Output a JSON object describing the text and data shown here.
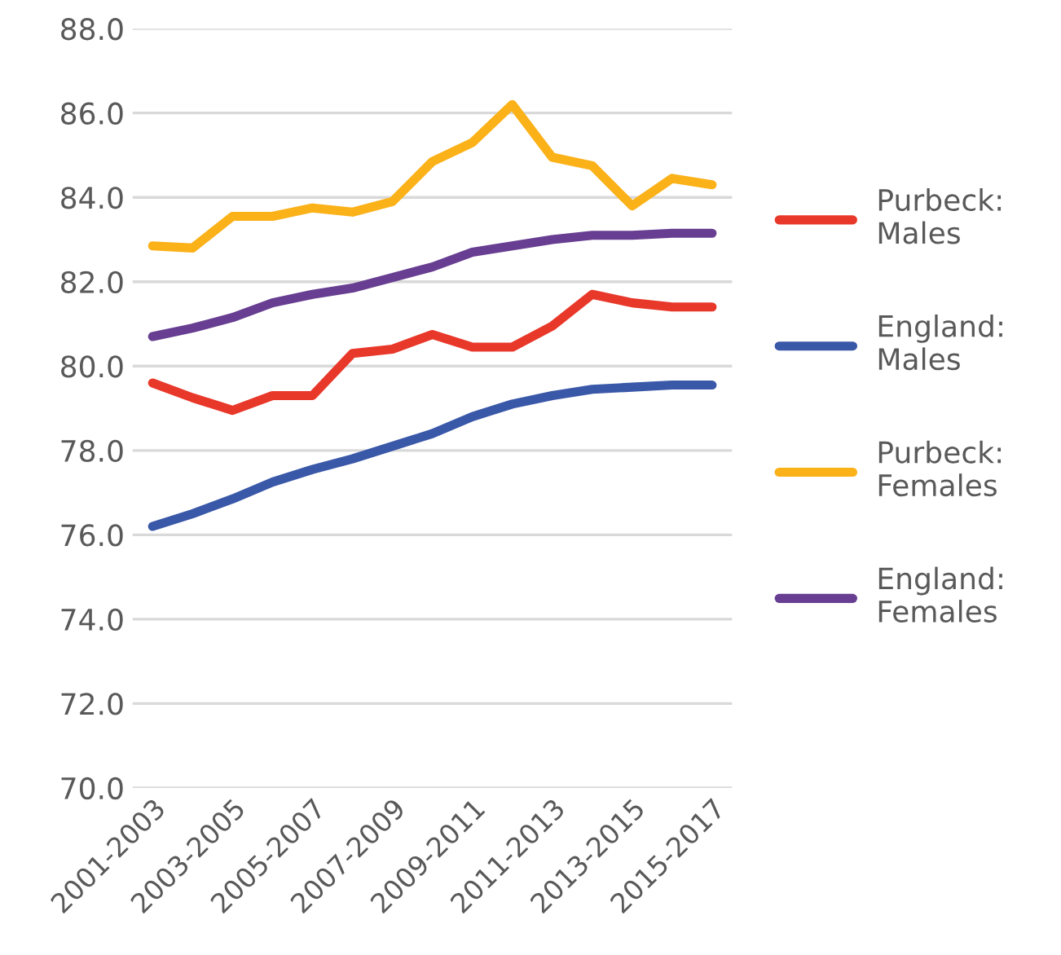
{
  "chart_data": {
    "type": "line",
    "categories": [
      "2001-2003",
      null,
      "2003-2005",
      null,
      "2005-2007",
      null,
      "2007-2009",
      null,
      "2009-2011",
      null,
      "2011-2013",
      null,
      "2013-2015",
      null,
      "2015-2017"
    ],
    "series": [
      {
        "name": "Purbeck:\nMales",
        "color": "#e8382a",
        "values": [
          79.6,
          79.25,
          78.95,
          79.3,
          79.3,
          80.3,
          80.4,
          80.75,
          80.45,
          80.45,
          80.95,
          81.7,
          81.5,
          81.4,
          81.4
        ]
      },
      {
        "name": "England:\nMales",
        "color": "#3a58a8",
        "values": [
          76.2,
          76.5,
          76.85,
          77.25,
          77.55,
          77.8,
          78.1,
          78.4,
          78.8,
          79.1,
          79.3,
          79.45,
          79.5,
          79.55,
          79.55
        ]
      },
      {
        "name": "Purbeck:\nFemales",
        "color": "#fbb118",
        "values": [
          82.85,
          82.8,
          83.55,
          83.55,
          83.75,
          83.65,
          83.9,
          84.85,
          85.3,
          86.2,
          84.95,
          84.75,
          83.8,
          84.45,
          84.3
        ]
      },
      {
        "name": "England:\nFemales",
        "color": "#673e91",
        "values": [
          80.7,
          80.9,
          81.15,
          81.5,
          81.7,
          81.85,
          82.1,
          82.35,
          82.7,
          82.85,
          83.0,
          83.1,
          83.1,
          83.15,
          83.15
        ]
      }
    ],
    "ylim": [
      70,
      88
    ],
    "yticks": [
      {
        "value": 70,
        "label": "70.0"
      },
      {
        "value": 72,
        "label": "72.0"
      },
      {
        "value": 74,
        "label": "74.0"
      },
      {
        "value": 76,
        "label": "76.0"
      },
      {
        "value": 78,
        "label": "78.0"
      },
      {
        "value": 80,
        "label": "80.0"
      },
      {
        "value": 82,
        "label": "82.0"
      },
      {
        "value": 84,
        "label": "84.0"
      },
      {
        "value": 86,
        "label": "86.0"
      },
      {
        "value": 88,
        "label": "88.0"
      }
    ],
    "grid": "y",
    "legend": "right",
    "marker": "none",
    "line_style": "solid"
  }
}
